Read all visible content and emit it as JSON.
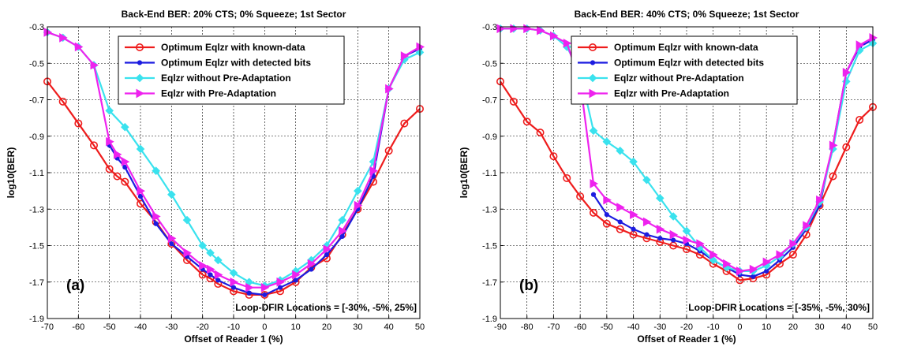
{
  "chart_data": [
    {
      "type": "line",
      "title": "Back-End BER:  20% CTS;  0% Squeeze;  1st Sector",
      "xlabel": "Offset of Reader 1 (%)",
      "ylabel": "log10(BER)",
      "xlim": [
        -70,
        50
      ],
      "ylim": [
        -1.9,
        -0.3
      ],
      "xticks": [
        -70,
        -60,
        -50,
        -40,
        -30,
        -20,
        -10,
        0,
        10,
        20,
        30,
        40,
        50
      ],
      "yticks": [
        -0.3,
        -0.5,
        -0.7,
        -0.9,
        -1.1,
        -1.3,
        -1.5,
        -1.7,
        -1.9
      ],
      "grid": true,
      "legend_position": "top-right",
      "panel_label": "(a)",
      "annotation": "Loop-DFIR Locations = [-30%, -5%, 25%]",
      "series": [
        {
          "name": "Optimum Eqlzr with known-data",
          "color": "#ee1c1c",
          "marker": "circle",
          "x": [
            -70,
            -65,
            -60,
            -55,
            -50,
            -47.5,
            -45,
            -40,
            -35,
            -30,
            -25,
            -20,
            -17.5,
            -15,
            -10,
            -5,
            0,
            5,
            10,
            15,
            20,
            25,
            30,
            35,
            40,
            45,
            50
          ],
          "y": [
            -0.6,
            -0.71,
            -0.83,
            -0.95,
            -1.08,
            -1.12,
            -1.15,
            -1.27,
            -1.37,
            -1.49,
            -1.58,
            -1.66,
            -1.68,
            -1.71,
            -1.75,
            -1.77,
            -1.77,
            -1.75,
            -1.7,
            -1.62,
            -1.57,
            -1.44,
            -1.3,
            -1.15,
            -0.98,
            -0.83,
            -0.75
          ]
        },
        {
          "name": "Optimum Eqlzr with detected bits",
          "color": "#1c1ce0",
          "marker": "dot",
          "x": [
            -50,
            -47.5,
            -45,
            -40,
            -35,
            -30,
            -25,
            -20,
            -17.5,
            -15,
            -10,
            -5,
            0,
            5,
            10,
            15,
            20,
            25,
            30,
            35,
            40,
            45,
            50
          ],
          "y": [
            -0.95,
            -1.02,
            -1.07,
            -1.23,
            -1.38,
            -1.49,
            -1.56,
            -1.63,
            -1.66,
            -1.69,
            -1.73,
            -1.76,
            -1.77,
            -1.73,
            -1.69,
            -1.63,
            -1.55,
            -1.45,
            -1.3,
            -1.12,
            -0.64,
            -0.46,
            -0.42
          ]
        },
        {
          "name": "Eqlzr without Pre-Adaptation",
          "color": "#3ae2ee",
          "marker": "diamond",
          "x": [
            -70,
            -65,
            -60,
            -55,
            -50,
            -45,
            -40,
            -35,
            -30,
            -25,
            -20,
            -17.5,
            -15,
            -10,
            -5,
            0,
            5,
            10,
            15,
            20,
            25,
            30,
            35,
            40,
            45,
            50
          ],
          "y": [
            -0.33,
            -0.36,
            -0.41,
            -0.51,
            -0.76,
            -0.85,
            -0.97,
            -1.09,
            -1.22,
            -1.36,
            -1.5,
            -1.54,
            -1.58,
            -1.65,
            -1.7,
            -1.72,
            -1.69,
            -1.64,
            -1.58,
            -1.5,
            -1.36,
            -1.2,
            -1.04,
            -0.64,
            -0.48,
            -0.44
          ]
        },
        {
          "name": "Eqlzr with Pre-Adaptation",
          "color": "#ee22ee",
          "marker": "triangle-right",
          "x": [
            -70,
            -65,
            -60,
            -55,
            -50,
            -47.5,
            -45,
            -40,
            -35,
            -30,
            -25,
            -20,
            -17.5,
            -15,
            -10,
            -5,
            0,
            5,
            10,
            15,
            20,
            25,
            30,
            35,
            40,
            45,
            50
          ],
          "y": [
            -0.33,
            -0.36,
            -0.41,
            -0.51,
            -0.93,
            -1.0,
            -1.04,
            -1.2,
            -1.34,
            -1.46,
            -1.54,
            -1.61,
            -1.63,
            -1.66,
            -1.7,
            -1.73,
            -1.73,
            -1.7,
            -1.66,
            -1.6,
            -1.52,
            -1.42,
            -1.28,
            -1.09,
            -0.64,
            -0.46,
            -0.41
          ]
        }
      ]
    },
    {
      "type": "line",
      "title": "Back-End BER:  40% CTS;  0% Squeeze;  1st Sector",
      "xlabel": "Offset of Reader 1 (%)",
      "ylabel": "log10(BER)",
      "xlim": [
        -90,
        50
      ],
      "ylim": [
        -1.9,
        -0.3
      ],
      "xticks": [
        -90,
        -80,
        -70,
        -60,
        -50,
        -40,
        -30,
        -20,
        -10,
        0,
        10,
        20,
        30,
        40,
        50
      ],
      "yticks": [
        -0.3,
        -0.5,
        -0.7,
        -0.9,
        -1.1,
        -1.3,
        -1.5,
        -1.7,
        -1.9
      ],
      "grid": true,
      "legend_position": "top-right",
      "panel_label": "(b)",
      "annotation": "Loop-DFIR Locations = [-35%, -5%, 30%]",
      "series": [
        {
          "name": "Optimum Eqlzr with known-data",
          "color": "#ee1c1c",
          "marker": "circle",
          "x": [
            -90,
            -85,
            -80,
            -75,
            -70,
            -65,
            -60,
            -55,
            -50,
            -45,
            -40,
            -35,
            -30,
            -25,
            -20,
            -15,
            -10,
            -5,
            0,
            5,
            10,
            15,
            20,
            25,
            30,
            35,
            40,
            45,
            50
          ],
          "y": [
            -0.6,
            -0.71,
            -0.82,
            -0.88,
            -1.01,
            -1.13,
            -1.23,
            -1.32,
            -1.38,
            -1.41,
            -1.44,
            -1.46,
            -1.48,
            -1.5,
            -1.52,
            -1.55,
            -1.6,
            -1.64,
            -1.69,
            -1.68,
            -1.66,
            -1.6,
            -1.55,
            -1.44,
            -1.28,
            -1.12,
            -0.96,
            -0.81,
            -0.74
          ]
        },
        {
          "name": "Optimum Eqlzr with detected bits",
          "color": "#1c1ce0",
          "marker": "dot",
          "x": [
            -55,
            -50,
            -45,
            -40,
            -35,
            -30,
            -25,
            -20,
            -15,
            -10,
            -5,
            0,
            5,
            10,
            15,
            20,
            25,
            30,
            35,
            40,
            45,
            50
          ],
          "y": [
            -1.22,
            -1.33,
            -1.37,
            -1.41,
            -1.44,
            -1.46,
            -1.47,
            -1.49,
            -1.53,
            -1.58,
            -1.62,
            -1.66,
            -1.67,
            -1.64,
            -1.58,
            -1.51,
            -1.41,
            -1.28,
            -0.95,
            -0.55,
            -0.41,
            -0.37
          ]
        },
        {
          "name": "Eqlzr without Pre-Adaptation",
          "color": "#3ae2ee",
          "marker": "diamond",
          "x": [
            -90,
            -85,
            -80,
            -75,
            -70,
            -65,
            -60,
            -55,
            -50,
            -45,
            -40,
            -35,
            -30,
            -25,
            -20,
            -15,
            -10,
            -5,
            0,
            5,
            10,
            15,
            20,
            25,
            30,
            35,
            40,
            45,
            50
          ],
          "y": [
            -0.31,
            -0.31,
            -0.31,
            -0.32,
            -0.35,
            -0.41,
            -0.55,
            -0.87,
            -0.93,
            -0.98,
            -1.04,
            -1.14,
            -1.24,
            -1.34,
            -1.42,
            -1.51,
            -1.58,
            -1.62,
            -1.64,
            -1.64,
            -1.61,
            -1.56,
            -1.49,
            -1.4,
            -1.26,
            -0.97,
            -0.6,
            -0.43,
            -0.39
          ]
        },
        {
          "name": "Eqlzr with Pre-Adaptation",
          "color": "#ee22ee",
          "marker": "triangle-right",
          "x": [
            -90,
            -85,
            -80,
            -75,
            -70,
            -65,
            -60,
            -55,
            -50,
            -45,
            -40,
            -35,
            -30,
            -25,
            -20,
            -15,
            -10,
            -5,
            0,
            5,
            10,
            15,
            20,
            25,
            30,
            35,
            40,
            45,
            50
          ],
          "y": [
            -0.31,
            -0.31,
            -0.31,
            -0.32,
            -0.35,
            -0.39,
            -0.6,
            -1.16,
            -1.25,
            -1.29,
            -1.33,
            -1.37,
            -1.41,
            -1.44,
            -1.47,
            -1.49,
            -1.55,
            -1.6,
            -1.64,
            -1.63,
            -1.59,
            -1.55,
            -1.49,
            -1.39,
            -1.25,
            -0.95,
            -0.55,
            -0.4,
            -0.36
          ]
        }
      ]
    }
  ]
}
